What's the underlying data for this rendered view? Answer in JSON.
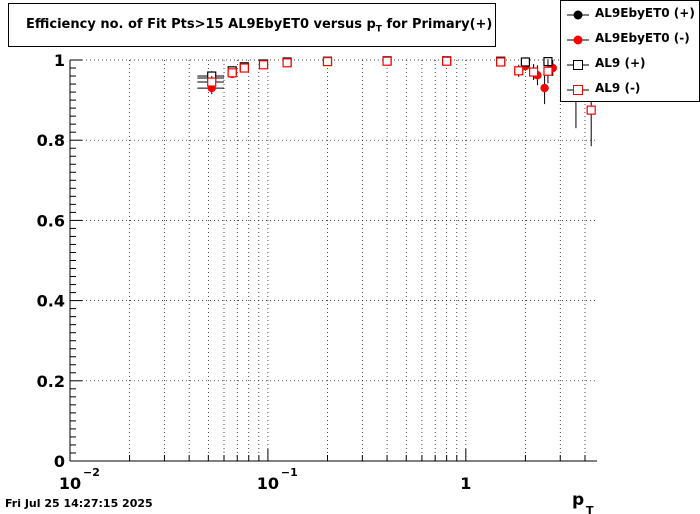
{
  "title": {
    "main": "Efficiency no. of Fit Pts>15 AL9EbyET0 versus p",
    "sub": "T",
    "suffix": " for Primary(+)"
  },
  "timestamp": "Fri Jul 25 14:27:15 2025",
  "legend": [
    {
      "label": "AL9EbyET0 (+)",
      "marker": "filled-circle",
      "color": "#000000"
    },
    {
      "label": "AL9EbyET0 (-)",
      "marker": "filled-circle",
      "color": "#ff0000"
    },
    {
      "label": "AL9 (+)",
      "marker": "open-square",
      "color": "#000000"
    },
    {
      "label": "AL9 (-)",
      "marker": "open-square",
      "color": "#ff0000"
    }
  ],
  "chart_data": {
    "type": "scatter",
    "title": "Efficiency no. of Fit Pts>15 AL9EbyET0 versus pT for Primary(+)",
    "xlabel": "p",
    "xlabel_sub": "T",
    "ylabel": "",
    "xscale": "log",
    "xlim": [
      0.01,
      4.6
    ],
    "ylim": [
      0,
      1.0
    ],
    "grid": true,
    "legend_position": "top-right",
    "x_tick_labels": [
      {
        "x": 0.01,
        "base": "10",
        "exp": "−2"
      },
      {
        "x": 0.1,
        "base": "10",
        "exp": "−1"
      },
      {
        "x": 1,
        "base": "1",
        "exp": ""
      }
    ],
    "y_tick_labels": [
      "0",
      "0.2",
      "0.4",
      "0.6",
      "0.8",
      "1"
    ],
    "y_ticks": [
      0,
      0.2,
      0.4,
      0.6,
      0.8,
      1.0
    ],
    "series": [
      {
        "name": "AL9EbyET0 (+)",
        "marker": "filled-circle",
        "color": "#000000",
        "points": [
          {
            "x": 0.052,
            "y": 0.955,
            "err": 0.012,
            "xerr": 0.008
          },
          {
            "x": 0.066,
            "y": 0.972,
            "err": 0.008
          },
          {
            "x": 0.076,
            "y": 0.982,
            "err": 0.006
          },
          {
            "x": 0.095,
            "y": 0.99,
            "err": 0.004
          },
          {
            "x": 0.125,
            "y": 0.995,
            "err": 0.003
          },
          {
            "x": 0.2,
            "y": 0.997,
            "err": 0.002
          },
          {
            "x": 0.4,
            "y": 0.998,
            "err": 0.002
          },
          {
            "x": 0.8,
            "y": 0.998,
            "err": 0.002
          },
          {
            "x": 1.5,
            "y": 0.997,
            "err": 0.004
          },
          {
            "x": 2.0,
            "y": 0.996,
            "err": 0.008
          },
          {
            "x": 2.6,
            "y": 0.997,
            "err": 0.01
          },
          {
            "x": 3.3,
            "y": 0.995,
            "err": 0.015
          },
          {
            "x": 4.1,
            "y": 0.996,
            "err": 0.02
          }
        ]
      },
      {
        "name": "AL9EbyET0 (-)",
        "marker": "filled-circle",
        "color": "#ff0000",
        "points": [
          {
            "x": 0.052,
            "y": 0.93,
            "err": 0.015,
            "xerr": 0.008
          },
          {
            "x": 0.066,
            "y": 0.965,
            "err": 0.008
          },
          {
            "x": 0.076,
            "y": 0.98,
            "err": 0.006
          },
          {
            "x": 0.095,
            "y": 0.988,
            "err": 0.004
          },
          {
            "x": 0.125,
            "y": 0.993,
            "err": 0.003
          },
          {
            "x": 0.2,
            "y": 0.996,
            "err": 0.002
          },
          {
            "x": 0.4,
            "y": 0.997,
            "err": 0.002
          },
          {
            "x": 0.8,
            "y": 0.997,
            "err": 0.002
          },
          {
            "x": 1.5,
            "y": 0.994,
            "err": 0.005
          },
          {
            "x": 2.0,
            "y": 0.985,
            "err": 0.012
          },
          {
            "x": 2.3,
            "y": 0.962,
            "err": 0.025
          },
          {
            "x": 2.5,
            "y": 0.93,
            "err": 0.04
          },
          {
            "x": 2.75,
            "y": 0.98,
            "err": 0.02
          },
          {
            "x": 3.5,
            "y": 0.99,
            "err": 0.02
          }
        ]
      },
      {
        "name": "AL9 (+)",
        "marker": "open-square",
        "color": "#000000",
        "points": [
          {
            "x": 0.052,
            "y": 0.96,
            "err": 0.012,
            "xerr": 0.008
          },
          {
            "x": 0.066,
            "y": 0.973,
            "err": 0.008
          },
          {
            "x": 0.076,
            "y": 0.983,
            "err": 0.006
          },
          {
            "x": 0.095,
            "y": 0.99,
            "err": 0.004
          },
          {
            "x": 0.125,
            "y": 0.995,
            "err": 0.003
          },
          {
            "x": 0.2,
            "y": 0.997,
            "err": 0.002
          },
          {
            "x": 0.4,
            "y": 0.998,
            "err": 0.002
          },
          {
            "x": 0.8,
            "y": 0.998,
            "err": 0.002
          },
          {
            "x": 1.5,
            "y": 0.997,
            "err": 0.004
          },
          {
            "x": 2.0,
            "y": 0.995,
            "err": 0.008
          },
          {
            "x": 2.6,
            "y": 0.996,
            "err": 0.01
          },
          {
            "x": 3.4,
            "y": 0.993,
            "err": 0.02
          },
          {
            "x": 4.2,
            "y": 0.99,
            "err": 0.03
          }
        ]
      },
      {
        "name": "AL9 (-)",
        "marker": "open-square",
        "color": "#ff0000",
        "points": [
          {
            "x": 0.052,
            "y": 0.945,
            "err": 0.015,
            "xerr": 0.008
          },
          {
            "x": 0.066,
            "y": 0.968,
            "err": 0.008
          },
          {
            "x": 0.076,
            "y": 0.98,
            "err": 0.006
          },
          {
            "x": 0.095,
            "y": 0.988,
            "err": 0.004
          },
          {
            "x": 0.125,
            "y": 0.993,
            "err": 0.003
          },
          {
            "x": 0.2,
            "y": 0.996,
            "err": 0.002
          },
          {
            "x": 0.4,
            "y": 0.997,
            "err": 0.002
          },
          {
            "x": 0.8,
            "y": 0.997,
            "err": 0.002
          },
          {
            "x": 1.5,
            "y": 0.995,
            "err": 0.005
          },
          {
            "x": 1.85,
            "y": 0.973,
            "err": 0.015
          },
          {
            "x": 2.2,
            "y": 0.97,
            "err": 0.02
          },
          {
            "x": 2.6,
            "y": 0.972,
            "err": 0.03
          },
          {
            "x": 3.6,
            "y": 0.91,
            "err": 0.08
          },
          {
            "x": 4.3,
            "y": 0.875,
            "err": 0.09
          }
        ]
      }
    ]
  }
}
